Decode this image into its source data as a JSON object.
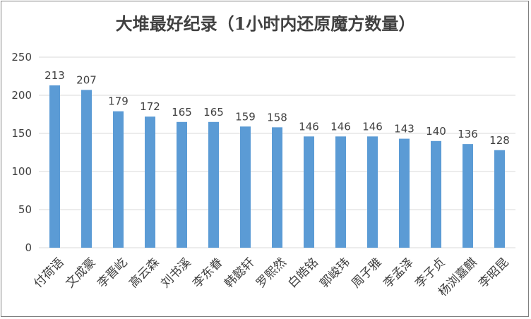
{
  "chart_data": {
    "type": "bar",
    "title": "大堆最好纪录（1小时内还原魔方数量）",
    "xlabel": "",
    "ylabel": "",
    "categories": [
      "付荷语",
      "文成豪",
      "李晋屹",
      "高云森",
      "刘书溪",
      "李东眷",
      "韩懿轩",
      "罗熙然",
      "白皓铭",
      "郭峻玮",
      "周子雅",
      "李孟泽",
      "李子贞",
      "杨浏嘉麒",
      "李昭昆"
    ],
    "values": [
      213,
      207,
      179,
      172,
      165,
      165,
      159,
      158,
      146,
      146,
      146,
      143,
      140,
      136,
      128
    ],
    "ylim": [
      0,
      250
    ],
    "yticks": [
      0,
      50,
      100,
      150,
      200,
      250
    ],
    "grid": true,
    "legend": "none",
    "bar_color": "#5b9bd5",
    "grid_color": "#d9d9d9",
    "text_color": "#404040"
  }
}
